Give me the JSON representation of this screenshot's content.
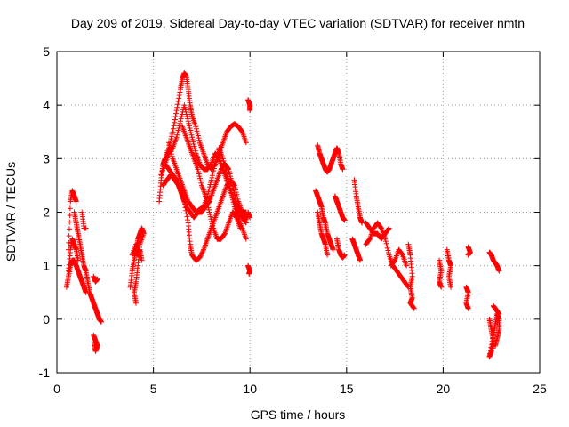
{
  "chart_data": {
    "type": "scatter",
    "title": "Day 209 of 2019, Sidereal Day-to-day VTEC variation (SDTVAR) for receiver nmtn",
    "xlabel": "GPS time / hours",
    "ylabel": "SDTVAR / TECUs",
    "xlim": [
      0,
      25
    ],
    "ylim": [
      -1,
      5
    ],
    "xticks": [
      "0",
      "5",
      "10",
      "15",
      "20",
      "25"
    ],
    "yticks": [
      "-1",
      "0",
      "1",
      "2",
      "3",
      "4",
      "5"
    ],
    "grid": true,
    "marker": "plus",
    "color": "#ff0000",
    "tracks": [
      [
        [
          0.6,
          1.3
        ],
        [
          0.7,
          2.2
        ],
        [
          0.8,
          2.4
        ],
        [
          0.9,
          2.3
        ],
        [
          1.0,
          2.2
        ]
      ],
      [
        [
          0.5,
          0.6
        ],
        [
          0.6,
          0.8
        ],
        [
          0.7,
          1.0
        ],
        [
          0.8,
          1.1
        ],
        [
          0.9,
          1.1
        ],
        [
          1.0,
          1.0
        ],
        [
          1.1,
          0.9
        ],
        [
          1.2,
          0.8
        ],
        [
          1.3,
          0.7
        ],
        [
          1.4,
          0.6
        ],
        [
          1.5,
          0.5
        ]
      ],
      [
        [
          0.6,
          0.9
        ],
        [
          0.7,
          1.3
        ],
        [
          0.8,
          1.5
        ],
        [
          0.9,
          1.4
        ],
        [
          1.0,
          1.3
        ],
        [
          1.1,
          1.1
        ]
      ],
      [
        [
          0.9,
          2.0
        ],
        [
          1.0,
          1.8
        ],
        [
          1.1,
          1.6
        ],
        [
          1.2,
          1.4
        ],
        [
          1.3,
          1.2
        ],
        [
          1.4,
          1.0
        ],
        [
          1.5,
          0.9
        ],
        [
          1.6,
          0.7
        ],
        [
          1.7,
          0.5
        ],
        [
          1.8,
          0.4
        ],
        [
          1.9,
          0.3
        ],
        [
          2.0,
          0.2
        ],
        [
          2.1,
          0.1
        ],
        [
          2.2,
          0.0
        ],
        [
          2.3,
          -0.05
        ]
      ],
      [
        [
          1.3,
          2.0
        ],
        [
          1.4,
          1.7
        ],
        [
          1.5,
          1.7
        ]
      ],
      [
        [
          1.9,
          0.8
        ],
        [
          2.0,
          0.7
        ],
        [
          2.1,
          0.75
        ]
      ],
      [
        [
          1.9,
          -0.3
        ],
        [
          2.0,
          -0.4
        ],
        [
          2.1,
          -0.5
        ],
        [
          2.0,
          -0.6
        ],
        [
          1.95,
          -0.45
        ]
      ],
      [
        [
          3.8,
          0.6
        ],
        [
          3.9,
          0.9
        ],
        [
          4.0,
          1.1
        ],
        [
          4.1,
          1.3
        ],
        [
          4.2,
          1.5
        ],
        [
          4.3,
          1.6
        ],
        [
          4.4,
          1.7
        ],
        [
          4.5,
          1.6
        ],
        [
          4.3,
          1.4
        ],
        [
          4.2,
          1.0
        ],
        [
          4.1,
          0.7
        ],
        [
          4.0,
          0.5
        ],
        [
          4.1,
          0.3
        ]
      ],
      [
        [
          3.9,
          1.2
        ],
        [
          4.1,
          1.4
        ],
        [
          4.2,
          1.2
        ],
        [
          4.3,
          1.3
        ],
        [
          4.4,
          1.1
        ]
      ],
      [
        [
          5.3,
          2.2
        ],
        [
          5.4,
          2.6
        ],
        [
          5.5,
          2.9
        ],
        [
          5.6,
          3.0
        ],
        [
          5.8,
          3.2
        ],
        [
          6.0,
          3.5
        ],
        [
          6.2,
          3.9
        ],
        [
          6.4,
          4.3
        ],
        [
          6.5,
          4.5
        ],
        [
          6.6,
          4.6
        ],
        [
          6.7,
          4.55
        ],
        [
          6.8,
          4.3
        ],
        [
          6.9,
          4.0
        ],
        [
          7.0,
          3.8
        ],
        [
          7.2,
          3.6
        ],
        [
          7.4,
          3.3
        ],
        [
          7.6,
          3.1
        ],
        [
          7.8,
          2.9
        ],
        [
          8.0,
          2.8
        ],
        [
          8.2,
          2.9
        ],
        [
          8.4,
          3.1
        ],
        [
          8.6,
          3.3
        ],
        [
          8.8,
          3.5
        ],
        [
          9.0,
          3.6
        ],
        [
          9.2,
          3.65
        ],
        [
          9.4,
          3.6
        ],
        [
          9.6,
          3.5
        ],
        [
          9.8,
          3.3
        ]
      ],
      [
        [
          5.4,
          2.7
        ],
        [
          5.6,
          2.9
        ],
        [
          5.8,
          3.1
        ],
        [
          6.0,
          3.2
        ],
        [
          6.2,
          3.4
        ],
        [
          6.4,
          3.7
        ],
        [
          6.6,
          4.0
        ],
        [
          6.8,
          3.7
        ],
        [
          7.0,
          3.4
        ],
        [
          7.2,
          3.1
        ],
        [
          7.4,
          2.9
        ],
        [
          7.6,
          2.8
        ],
        [
          7.8,
          2.8
        ],
        [
          8.0,
          2.9
        ],
        [
          8.2,
          3.1
        ],
        [
          8.4,
          3.0
        ],
        [
          8.6,
          2.8
        ],
        [
          8.8,
          2.6
        ],
        [
          9.0,
          2.4
        ],
        [
          9.2,
          2.2
        ],
        [
          9.4,
          2.0
        ],
        [
          9.6,
          1.9
        ],
        [
          9.8,
          1.8
        ]
      ],
      [
        [
          5.5,
          2.5
        ],
        [
          5.7,
          2.6
        ],
        [
          5.9,
          2.7
        ],
        [
          6.1,
          2.6
        ],
        [
          6.3,
          2.5
        ],
        [
          6.5,
          2.3
        ],
        [
          6.7,
          2.1
        ],
        [
          6.9,
          2.0
        ],
        [
          7.1,
          1.9
        ],
        [
          7.3,
          2.0
        ],
        [
          7.5,
          2.0
        ],
        [
          7.7,
          2.1
        ],
        [
          7.9,
          2.2
        ],
        [
          8.1,
          2.4
        ],
        [
          8.3,
          2.6
        ],
        [
          8.5,
          2.8
        ],
        [
          8.7,
          2.9
        ],
        [
          8.9,
          2.8
        ],
        [
          9.1,
          2.5
        ],
        [
          9.3,
          2.2
        ],
        [
          9.5,
          2.0
        ],
        [
          9.7,
          1.9
        ],
        [
          9.9,
          1.9
        ]
      ],
      [
        [
          5.6,
          2.9
        ],
        [
          5.8,
          2.8
        ],
        [
          6.0,
          2.7
        ],
        [
          6.2,
          2.6
        ],
        [
          6.4,
          2.4
        ],
        [
          6.6,
          2.2
        ],
        [
          6.8,
          1.8
        ],
        [
          6.9,
          1.4
        ],
        [
          7.0,
          1.2
        ],
        [
          7.2,
          1.1
        ],
        [
          7.4,
          1.15
        ],
        [
          7.6,
          1.3
        ],
        [
          7.8,
          1.5
        ],
        [
          8.0,
          1.7
        ],
        [
          8.2,
          1.9
        ],
        [
          8.4,
          2.1
        ],
        [
          8.6,
          2.3
        ],
        [
          8.8,
          2.5
        ],
        [
          9.0,
          2.6
        ],
        [
          9.2,
          2.5
        ],
        [
          9.4,
          2.2
        ],
        [
          9.6,
          2.0
        ],
        [
          9.8,
          2.0
        ]
      ],
      [
        [
          5.8,
          3.3
        ],
        [
          6.0,
          3.0
        ],
        [
          6.2,
          2.8
        ],
        [
          6.4,
          2.6
        ],
        [
          6.6,
          2.4
        ],
        [
          6.8,
          2.2
        ],
        [
          7.0,
          2.1
        ],
        [
          7.2,
          2.0
        ],
        [
          7.4,
          2.05
        ],
        [
          7.6,
          2.1
        ],
        [
          7.8,
          2.3
        ],
        [
          8.0,
          2.6
        ],
        [
          8.2,
          2.9
        ],
        [
          8.4,
          3.2
        ],
        [
          8.6,
          3.0
        ],
        [
          8.8,
          2.7
        ],
        [
          9.0,
          2.4
        ],
        [
          9.2,
          2.1
        ],
        [
          9.4,
          1.9
        ],
        [
          9.6,
          1.7
        ],
        [
          9.8,
          1.5
        ]
      ],
      [
        [
          6.5,
          3.6
        ],
        [
          6.7,
          3.4
        ],
        [
          6.9,
          3.2
        ],
        [
          7.1,
          3.0
        ],
        [
          7.3,
          2.8
        ],
        [
          7.5,
          2.5
        ],
        [
          7.7,
          2.3
        ],
        [
          7.9,
          2.0
        ],
        [
          8.1,
          1.7
        ],
        [
          8.3,
          1.5
        ],
        [
          8.5,
          1.5
        ],
        [
          8.7,
          1.6
        ],
        [
          8.9,
          1.8
        ],
        [
          9.1,
          2.0
        ],
        [
          9.3,
          1.9
        ],
        [
          9.5,
          1.7
        ]
      ],
      [
        [
          9.9,
          4.1
        ],
        [
          10.0,
          4.0
        ],
        [
          10.0,
          3.9
        ]
      ],
      [
        [
          9.9,
          2.0
        ],
        [
          10.0,
          1.9
        ]
      ],
      [
        [
          9.9,
          1.0
        ],
        [
          10.0,
          0.9
        ],
        [
          9.95,
          0.85
        ]
      ],
      [
        [
          13.5,
          3.25
        ],
        [
          13.6,
          3.1
        ],
        [
          13.7,
          3.0
        ],
        [
          13.8,
          2.9
        ],
        [
          13.9,
          2.8
        ],
        [
          14.0,
          2.75
        ],
        [
          14.1,
          2.8
        ],
        [
          14.2,
          2.9
        ],
        [
          14.3,
          3.0
        ],
        [
          14.4,
          3.1
        ],
        [
          14.5,
          3.2
        ],
        [
          14.6,
          3.1
        ],
        [
          14.7,
          2.9
        ],
        [
          14.8,
          2.8
        ]
      ],
      [
        [
          13.4,
          2.4
        ],
        [
          13.5,
          2.3
        ],
        [
          13.6,
          2.2
        ],
        [
          13.7,
          2.1
        ],
        [
          13.8,
          1.9
        ],
        [
          13.9,
          1.8
        ],
        [
          14.0,
          1.6
        ],
        [
          14.1,
          1.5
        ],
        [
          14.2,
          1.4
        ],
        [
          14.3,
          1.3
        ]
      ],
      [
        [
          13.5,
          2.0
        ],
        [
          13.6,
          1.8
        ],
        [
          13.7,
          1.6
        ],
        [
          13.8,
          1.5
        ],
        [
          13.9,
          1.4
        ],
        [
          14.0,
          1.2
        ]
      ],
      [
        [
          14.4,
          2.3
        ],
        [
          14.5,
          2.2
        ],
        [
          14.6,
          2.1
        ],
        [
          14.7,
          2.0
        ],
        [
          14.8,
          1.9
        ],
        [
          14.9,
          1.85
        ]
      ],
      [
        [
          14.5,
          1.5
        ],
        [
          14.6,
          1.3
        ],
        [
          14.7,
          1.2
        ],
        [
          14.8,
          1.15
        ],
        [
          14.9,
          1.2
        ]
      ],
      [
        [
          15.4,
          2.6
        ],
        [
          15.5,
          2.3
        ],
        [
          15.6,
          2.1
        ],
        [
          15.7,
          1.9
        ],
        [
          15.8,
          1.8
        ]
      ],
      [
        [
          15.3,
          1.5
        ],
        [
          15.4,
          1.4
        ],
        [
          15.5,
          1.3
        ],
        [
          15.6,
          1.2
        ],
        [
          15.7,
          1.1
        ]
      ],
      [
        [
          16.0,
          1.8
        ],
        [
          16.2,
          1.7
        ],
        [
          16.4,
          1.6
        ],
        [
          16.6,
          1.6
        ],
        [
          16.8,
          1.5
        ],
        [
          17.0,
          1.6
        ],
        [
          17.2,
          1.7
        ]
      ],
      [
        [
          16.0,
          1.4
        ],
        [
          16.2,
          1.5
        ],
        [
          16.4,
          1.7
        ],
        [
          16.6,
          1.8
        ],
        [
          16.8,
          1.7
        ],
        [
          17.0,
          1.5
        ],
        [
          17.2,
          1.2
        ],
        [
          17.4,
          1.0
        ],
        [
          17.6,
          0.9
        ],
        [
          17.8,
          0.8
        ],
        [
          18.0,
          0.7
        ],
        [
          18.2,
          0.6
        ]
      ],
      [
        [
          17.3,
          1.0
        ],
        [
          17.5,
          1.1
        ],
        [
          17.7,
          1.3
        ],
        [
          17.9,
          1.2
        ],
        [
          18.1,
          1.0
        ]
      ],
      [
        [
          18.2,
          1.4
        ],
        [
          18.3,
          1.2
        ],
        [
          18.4,
          0.8
        ],
        [
          18.3,
          0.6
        ],
        [
          18.4,
          0.4
        ],
        [
          18.3,
          0.3
        ],
        [
          18.5,
          0.2
        ]
      ],
      [
        [
          19.8,
          1.1
        ],
        [
          19.9,
          0.9
        ],
        [
          19.8,
          0.7
        ],
        [
          19.9,
          0.6
        ]
      ],
      [
        [
          20.2,
          1.3
        ],
        [
          20.3,
          1.1
        ],
        [
          20.4,
          1.0
        ],
        [
          20.3,
          0.8
        ],
        [
          20.4,
          0.6
        ]
      ],
      [
        [
          21.2,
          0.6
        ],
        [
          21.3,
          0.5
        ],
        [
          21.2,
          0.3
        ],
        [
          21.3,
          0.2
        ]
      ],
      [
        [
          21.3,
          1.35
        ],
        [
          21.4,
          1.25
        ],
        [
          21.3,
          1.2
        ]
      ],
      [
        [
          22.4,
          1.25
        ],
        [
          22.5,
          1.2
        ],
        [
          22.6,
          1.1
        ],
        [
          22.7,
          1.05
        ],
        [
          22.8,
          1.0
        ],
        [
          22.9,
          0.9
        ]
      ],
      [
        [
          22.4,
          0.0
        ],
        [
          22.5,
          -0.2
        ],
        [
          22.6,
          -0.4
        ],
        [
          22.5,
          -0.6
        ],
        [
          22.4,
          -0.7
        ],
        [
          22.6,
          -0.3
        ],
        [
          22.7,
          -0.1
        ],
        [
          22.8,
          0.1
        ],
        [
          22.9,
          0.0
        ],
        [
          22.9,
          -0.2
        ],
        [
          22.8,
          -0.35
        ],
        [
          22.7,
          -0.5
        ]
      ],
      [
        [
          22.6,
          0.25
        ],
        [
          22.7,
          0.2
        ],
        [
          22.8,
          0.15
        ],
        [
          22.9,
          0.1
        ]
      ]
    ]
  }
}
